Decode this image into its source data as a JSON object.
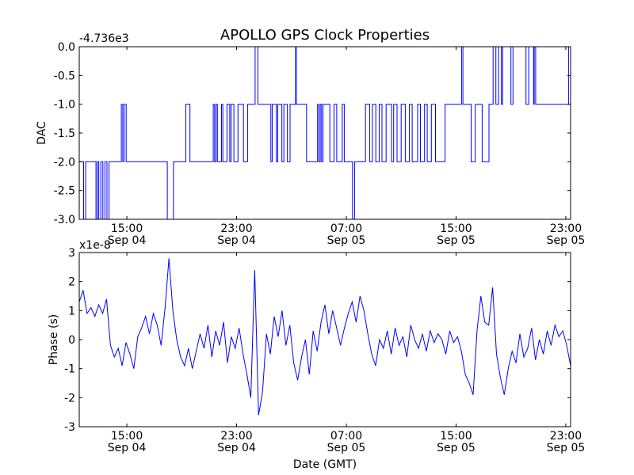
{
  "title": "APOLLO GPS Clock Properties",
  "colors": {
    "line": "#0000ff",
    "axes": "#000000"
  },
  "chart_data": [
    {
      "type": "line",
      "name": "dac",
      "title": "APOLLO GPS Clock Properties",
      "xlabel": "",
      "ylabel": "DAC",
      "offset_text": "-4.736e3",
      "ylim": [
        -3.0,
        0.0
      ],
      "xlim_hours_since_sep04_0000": [
        11.53,
        47.35
      ],
      "yticks": [
        0.0,
        -0.5,
        -1.0,
        -1.5,
        -2.0,
        -2.5,
        -3.0
      ],
      "ytick_labels": [
        "0.0",
        "-0.5",
        "-1.0",
        "-1.5",
        "-2.0",
        "-2.5",
        "-3.0"
      ],
      "xticks_hours": [
        15,
        23,
        31,
        39,
        47
      ],
      "xtick_labels": [
        [
          "15:00",
          "Sep 04"
        ],
        [
          "23:00",
          "Sep 04"
        ],
        [
          "07:00",
          "Sep 05"
        ],
        [
          "15:00",
          "Sep 05"
        ],
        [
          "23:00",
          "Sep 05"
        ]
      ],
      "step": true,
      "points": [
        [
          11.53,
          -2
        ],
        [
          11.85,
          -3
        ],
        [
          12.0,
          -2
        ],
        [
          12.75,
          -3
        ],
        [
          12.85,
          -2
        ],
        [
          12.95,
          -3
        ],
        [
          13.1,
          -2
        ],
        [
          13.25,
          -3
        ],
        [
          13.4,
          -2
        ],
        [
          13.55,
          -3
        ],
        [
          13.7,
          -2
        ],
        [
          14.6,
          -1
        ],
        [
          14.7,
          -2
        ],
        [
          14.8,
          -1
        ],
        [
          14.95,
          -2
        ],
        [
          17.95,
          -3
        ],
        [
          18.4,
          -2
        ],
        [
          19.3,
          -1
        ],
        [
          19.6,
          -2
        ],
        [
          21.3,
          -1
        ],
        [
          21.4,
          -2
        ],
        [
          21.5,
          -1
        ],
        [
          21.6,
          -2
        ],
        [
          21.9,
          -1
        ],
        [
          22.0,
          -2
        ],
        [
          22.3,
          -1
        ],
        [
          22.5,
          -2
        ],
        [
          22.6,
          -1
        ],
        [
          22.8,
          -2
        ],
        [
          23.1,
          -1
        ],
        [
          23.5,
          -2
        ],
        [
          23.8,
          -1
        ],
        [
          24.35,
          0
        ],
        [
          24.55,
          -1
        ],
        [
          25.5,
          -2
        ],
        [
          25.6,
          -1
        ],
        [
          25.9,
          -2
        ],
        [
          26.0,
          -1
        ],
        [
          26.3,
          -2
        ],
        [
          26.45,
          -1
        ],
        [
          26.7,
          -2
        ],
        [
          26.9,
          -1
        ],
        [
          27.3,
          0
        ],
        [
          27.35,
          -1
        ],
        [
          28.1,
          -2
        ],
        [
          28.9,
          -1
        ],
        [
          29.0,
          -2
        ],
        [
          29.1,
          -1
        ],
        [
          29.2,
          -2
        ],
        [
          29.3,
          -1
        ],
        [
          29.8,
          -2
        ],
        [
          30.1,
          -1
        ],
        [
          30.3,
          -2
        ],
        [
          30.7,
          -1
        ],
        [
          30.85,
          -2
        ],
        [
          31.45,
          -3
        ],
        [
          31.6,
          -2
        ],
        [
          32.4,
          -1
        ],
        [
          32.7,
          -2
        ],
        [
          32.9,
          -1
        ],
        [
          33.15,
          -2
        ],
        [
          33.4,
          -1
        ],
        [
          33.6,
          -2
        ],
        [
          33.9,
          -1
        ],
        [
          34.3,
          -2
        ],
        [
          34.45,
          -1
        ],
        [
          34.7,
          -2
        ],
        [
          35.0,
          -1
        ],
        [
          35.3,
          -2
        ],
        [
          35.6,
          -1
        ],
        [
          35.8,
          -2
        ],
        [
          36.2,
          -1
        ],
        [
          36.4,
          -2
        ],
        [
          36.7,
          -1
        ],
        [
          36.9,
          -2
        ],
        [
          37.2,
          -1
        ],
        [
          37.5,
          -2
        ],
        [
          38.2,
          -1
        ],
        [
          39.4,
          0
        ],
        [
          39.5,
          -1
        ],
        [
          40.1,
          -2
        ],
        [
          40.4,
          -1
        ],
        [
          40.9,
          -2
        ],
        [
          41.4,
          -1
        ],
        [
          41.7,
          0
        ],
        [
          41.9,
          -1
        ],
        [
          42.1,
          0
        ],
        [
          42.3,
          -1
        ],
        [
          42.4,
          0
        ],
        [
          43.0,
          -1
        ],
        [
          43.15,
          0
        ],
        [
          44.1,
          -1
        ],
        [
          44.3,
          0
        ],
        [
          44.65,
          -1
        ],
        [
          44.7,
          0
        ],
        [
          44.8,
          -1
        ],
        [
          47.2,
          0
        ],
        [
          47.35,
          0
        ]
      ]
    },
    {
      "type": "line",
      "name": "phase",
      "xlabel": "Date (GMT)",
      "ylabel": "Phase (s)",
      "offset_text": "x1e-8",
      "ylim": [
        -3,
        3
      ],
      "xlim_hours_since_sep04_0000": [
        11.53,
        47.35
      ],
      "yticks": [
        3,
        2,
        1,
        0,
        -1,
        -2,
        -3
      ],
      "ytick_labels": [
        "3",
        "2",
        "1",
        "0",
        "-1",
        "-2",
        "-3"
      ],
      "xticks_hours": [
        15,
        23,
        31,
        39,
        47
      ],
      "xtick_labels": [
        [
          "15:00",
          "Sep 04"
        ],
        [
          "23:00",
          "Sep 04"
        ],
        [
          "07:00",
          "Sep 05"
        ],
        [
          "15:00",
          "Sep 05"
        ],
        [
          "23:00",
          "Sep 05"
        ]
      ],
      "values_evenly_spaced": [
        1.3,
        1.7,
        0.9,
        1.1,
        0.8,
        1.2,
        0.9,
        1.4,
        -0.2,
        -0.6,
        -0.3,
        -0.9,
        -0.1,
        -0.5,
        -1.0,
        0.1,
        0.4,
        0.8,
        0.2,
        0.9,
        0.5,
        -0.2,
        1.1,
        2.8,
        1.0,
        0.0,
        -0.6,
        -0.9,
        -0.3,
        -1.0,
        -0.4,
        0.2,
        -0.3,
        0.5,
        -0.6,
        0.3,
        -0.2,
        0.6,
        -0.8,
        0.1,
        -0.3,
        0.4,
        -0.5,
        -1.2,
        -2.0,
        2.4,
        -2.6,
        -1.8,
        0.2,
        -0.5,
        0.8,
        0.1,
        1.0,
        -0.2,
        0.5,
        -0.8,
        -1.4,
        -0.6,
        0.0,
        -1.2,
        0.3,
        -0.4,
        0.6,
        1.2,
        0.2,
        1.0,
        0.4,
        -0.2,
        0.4,
        0.9,
        1.3,
        0.6,
        1.5,
        1.0,
        0.2,
        -0.5,
        -0.9,
        0.0,
        -0.3,
        0.3,
        -0.5,
        0.4,
        -0.2,
        0.1,
        -0.6,
        0.5,
        0.0,
        -0.3,
        0.2,
        -0.4,
        0.3,
        -0.1,
        0.2,
        0.0,
        -0.5,
        0.3,
        -0.1,
        0.1,
        -0.4,
        -1.2,
        -1.5,
        -1.9,
        0.3,
        1.5,
        0.6,
        0.5,
        1.8,
        -0.5,
        -1.3,
        -1.9,
        -1.0,
        -0.4,
        -0.8,
        0.2,
        -0.6,
        -0.3,
        0.4,
        -0.7,
        0.0,
        -0.5,
        0.3,
        -0.2,
        0.5,
        0.1,
        0.3,
        -0.2,
        -0.9
      ]
    }
  ]
}
